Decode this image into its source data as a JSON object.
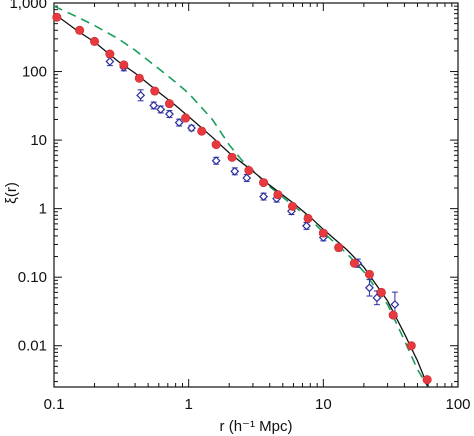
{
  "chart_data": {
    "type": "scatter",
    "title": "",
    "xlabel": "r (h⁻¹ Mpc)",
    "ylabel": "ξ(r)",
    "xscale": "log",
    "yscale": "log",
    "xlim": [
      0.1,
      100
    ],
    "ylim": [
      0.0025,
      1000
    ],
    "x_ticks": [
      0.1,
      1,
      10,
      100
    ],
    "x_tick_labels": [
      "0.1",
      "1",
      "10",
      "100"
    ],
    "y_ticks": [
      0.01,
      0.1,
      1,
      10,
      100,
      1000
    ],
    "y_tick_labels": [
      "0.01",
      "0.10",
      "1",
      "10",
      "100",
      "1,000"
    ],
    "grid": false,
    "legend": "none",
    "colors": {
      "red_points": "#e8393f",
      "blue_points": "#2b2f9e",
      "green_dash": "#1a9e5c",
      "black_line": "#111111"
    },
    "series": [
      {
        "style": "red filled circles",
        "x": [
          0.105,
          0.155,
          0.2,
          0.26,
          0.33,
          0.43,
          0.56,
          0.72,
          0.95,
          1.25,
          1.6,
          2.1,
          2.8,
          3.6,
          4.6,
          5.9,
          7.7,
          10,
          13,
          17,
          22,
          27,
          33,
          45,
          59
        ],
        "y": [
          620,
          400,
          275,
          180,
          125,
          80,
          52,
          34,
          21,
          13.5,
          8.6,
          5.6,
          3.6,
          2.4,
          1.6,
          1.08,
          0.72,
          0.44,
          0.27,
          0.16,
          0.11,
          0.06,
          0.028,
          0.01,
          0.0032
        ]
      },
      {
        "style": "blue open diamonds with error bars",
        "x": [
          0.26,
          0.33,
          0.44,
          0.55,
          0.62,
          0.72,
          0.85,
          1.05,
          1.6,
          2.2,
          2.7,
          3.6,
          4.5,
          5.8,
          7.5,
          10,
          13,
          18,
          22,
          25,
          34
        ],
        "y": [
          140,
          115,
          45,
          32,
          28,
          24,
          18,
          15,
          5,
          3.5,
          2.8,
          1.5,
          1.4,
          0.92,
          0.56,
          0.38,
          0.27,
          0.16,
          0.07,
          0.05,
          0.04
        ],
        "err": [
          0.06,
          0.05,
          0.08,
          0.05,
          0.05,
          0.05,
          0.05,
          0.04,
          0.05,
          0.05,
          0.05,
          0.05,
          0.05,
          0.05,
          0.05,
          0.05,
          0.05,
          0.06,
          0.12,
          0.1,
          0.18
        ]
      },
      {
        "style": "black solid line",
        "x": [
          0.1,
          0.15,
          0.2,
          0.3,
          0.4,
          0.6,
          0.8,
          1,
          1.5,
          2,
          3,
          4,
          6,
          8,
          10,
          15,
          20,
          30,
          40,
          50,
          60
        ],
        "y": [
          700,
          390,
          270,
          140,
          95,
          50,
          32,
          22,
          11,
          6.5,
          3.5,
          2.2,
          1.2,
          0.75,
          0.5,
          0.25,
          0.14,
          0.045,
          0.015,
          0.006,
          0.0025
        ]
      },
      {
        "style": "green dashed line",
        "x": [
          0.1,
          0.15,
          0.2,
          0.3,
          0.4,
          0.6,
          0.8,
          1,
          1.5,
          2,
          2.5,
          3,
          4,
          6,
          8,
          10,
          15,
          20,
          30,
          40,
          50,
          60
        ],
        "y": [
          900,
          620,
          470,
          300,
          205,
          110,
          70,
          48,
          20,
          8.5,
          5,
          3.6,
          2.1,
          1.1,
          0.7,
          0.45,
          0.22,
          0.12,
          0.04,
          0.012,
          0.0045,
          0.0025
        ]
      }
    ]
  }
}
